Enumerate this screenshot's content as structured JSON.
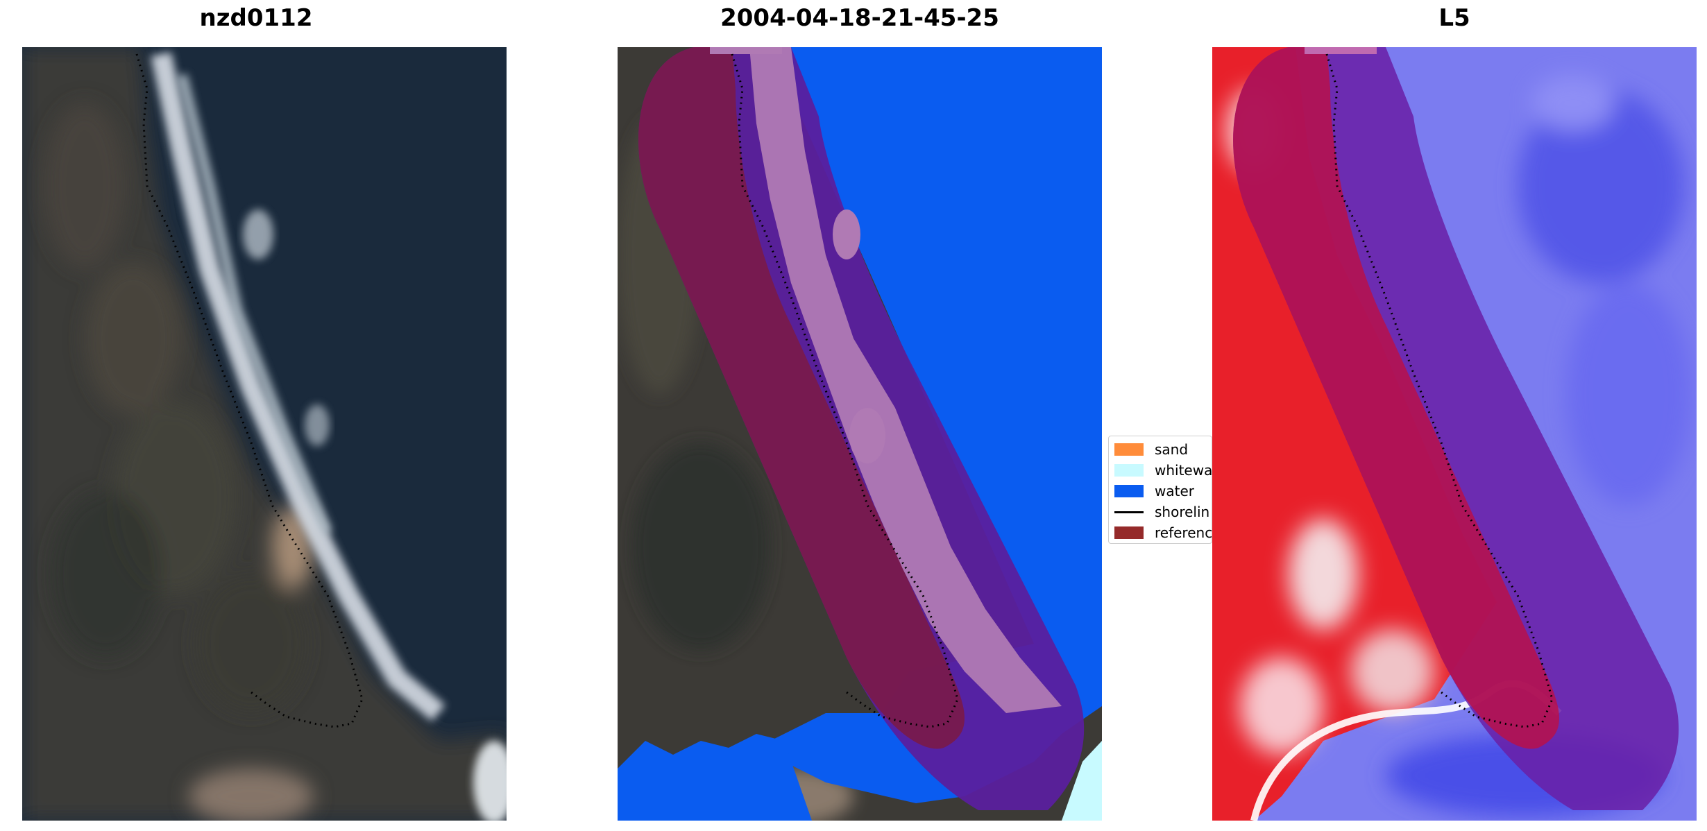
{
  "panels": {
    "left": {
      "title": "nzd0112"
    },
    "middle": {
      "title": "2004-04-18-21-45-25"
    },
    "right": {
      "title": "L5"
    }
  },
  "legend": {
    "items": [
      {
        "label": "sand",
        "kind": "patch",
        "color": "#ff8c3a"
      },
      {
        "label": "whitewa",
        "kind": "patch",
        "color": "#c8faff"
      },
      {
        "label": "water",
        "kind": "patch",
        "color": "#0a5cf0"
      },
      {
        "label": "shorelin",
        "kind": "line",
        "color": "#000000"
      },
      {
        "label": "referenc",
        "kind": "patch",
        "color": "#952a2a"
      }
    ]
  },
  "colors": {
    "reference_band": "#8a0a3a",
    "water_class": "#0a5cf0",
    "whitewater_class": "#c8faff",
    "shoreline": "#000000"
  }
}
